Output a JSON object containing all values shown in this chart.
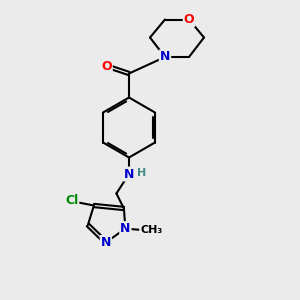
{
  "bg_color": "#ebebeb",
  "bond_color": "#000000",
  "bond_width": 1.5,
  "dbo": 0.055,
  "atom_colors": {
    "O": "#ff0000",
    "N": "#0000cc",
    "Cl": "#008800",
    "C": "#000000",
    "H": "#448888"
  },
  "font_size": 9,
  "fig_size": [
    3.0,
    3.0
  ],
  "dpi": 100,
  "xlim": [
    0,
    10
  ],
  "ylim": [
    0,
    10
  ]
}
